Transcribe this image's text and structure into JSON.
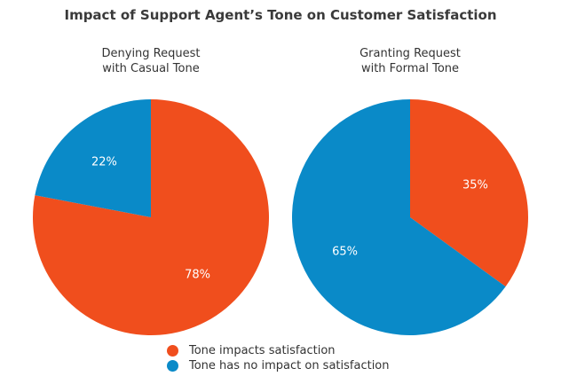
{
  "chart_data": [
    {
      "type": "pie",
      "title": "Impact of Support Agent’s Tone on Customer Satisfaction",
      "subtitle": "Denying Request with Casual Tone",
      "subtitle_lines": [
        "Denying Request",
        "with Casual Tone"
      ],
      "slices": [
        {
          "name": "Tone impacts satisfaction",
          "value": 78,
          "label": "78%",
          "color": "#f04e1d"
        },
        {
          "name": "Tone has no impact on satisfaction",
          "value": 22,
          "label": "22%",
          "color": "#0a8ac8"
        }
      ]
    },
    {
      "type": "pie",
      "subtitle": "Granting Request with Formal Tone",
      "subtitle_lines": [
        "Granting Request",
        "with Formal Tone"
      ],
      "slices": [
        {
          "name": "Tone impacts satisfaction",
          "value": 35,
          "label": "35%",
          "color": "#f04e1d"
        },
        {
          "name": "Tone has no impact on satisfaction",
          "value": 65,
          "label": "65%",
          "color": "#0a8ac8"
        }
      ]
    }
  ],
  "title": "Impact of Support Agent’s Tone on Customer Satisfaction",
  "legend": [
    {
      "label": "Tone impacts satisfaction",
      "color": "#f04e1d"
    },
    {
      "label": "Tone has no impact on satisfaction",
      "color": "#0a8ac8"
    }
  ]
}
